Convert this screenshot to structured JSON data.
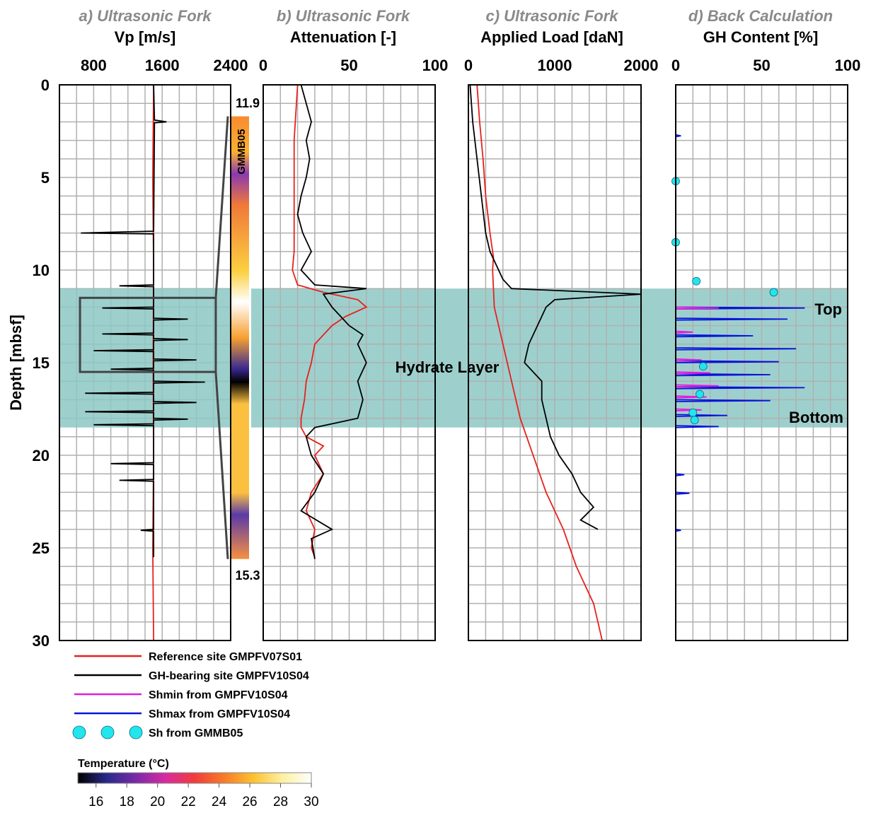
{
  "depth_axis": {
    "label": "Depth [mbsf]",
    "ylim": [
      0,
      30
    ],
    "yticks": [
      0,
      5,
      10,
      15,
      20,
      25,
      30
    ],
    "ygrid": [
      0,
      1,
      2,
      3,
      4,
      5,
      6,
      7,
      8,
      9,
      10,
      11,
      12,
      13,
      14,
      15,
      16,
      17,
      18,
      19,
      20,
      21,
      22,
      23,
      24,
      25,
      26,
      27,
      28,
      29,
      30
    ]
  },
  "charts": [
    {
      "type": "line",
      "title": "a) Ultrasonic Fork",
      "xlabel": "Vp [m/s]",
      "xlim": [
        400,
        2400
      ],
      "xticks": [
        800,
        1600,
        2400
      ],
      "xgrid": [
        400,
        600,
        800,
        1000,
        1200,
        1400,
        1600,
        1800,
        2000,
        2200,
        2400
      ],
      "series": [
        {
          "color": "#e8201c",
          "depth": [
            0,
            5,
            10,
            15,
            20,
            25,
            30
          ],
          "values": [
            1500,
            1490,
            1500,
            1495,
            1500,
            1490,
            1500
          ]
        },
        {
          "color": "#000000",
          "depth": [
            0,
            1.9,
            2.0,
            2.05,
            7.9,
            8.0,
            8.05,
            10.8,
            10.85,
            10.9,
            12.0,
            12.05,
            12.1,
            12.6,
            12.65,
            12.7,
            13.4,
            13.45,
            13.5,
            13.7,
            13.75,
            13.8,
            14.3,
            14.35,
            14.4,
            14.8,
            14.85,
            14.9,
            15.3,
            15.35,
            15.4,
            16.0,
            16.05,
            16.1,
            16.6,
            16.65,
            16.7,
            17.1,
            17.15,
            17.2,
            17.6,
            17.65,
            17.7,
            18.0,
            18.05,
            18.1,
            18.3,
            18.35,
            18.4,
            20.4,
            20.45,
            20.5,
            21.3,
            21.35,
            21.4,
            24.0,
            24.05,
            24.1,
            25.5
          ],
          "values": [
            1500,
            1510,
            1650,
            1510,
            1500,
            650,
            1500,
            1500,
            1100,
            1500,
            1500,
            900,
            1500,
            1500,
            1900,
            1500,
            1500,
            900,
            1500,
            1500,
            1900,
            1500,
            1500,
            800,
            1500,
            1500,
            2000,
            1500,
            1500,
            1000,
            1500,
            1500,
            2100,
            1500,
            1500,
            700,
            1500,
            1500,
            2000,
            1500,
            1500,
            700,
            1500,
            1500,
            1900,
            1500,
            1500,
            800,
            1500,
            1500,
            1000,
            1500,
            1500,
            1100,
            1500,
            1500,
            1350,
            1500,
            1500
          ]
        }
      ]
    },
    {
      "type": "line",
      "title": "b) Ultrasonic Fork",
      "xlabel": "Attenuation [-]",
      "xlim": [
        0,
        100
      ],
      "xticks": [
        0,
        50,
        100
      ],
      "xgrid": [
        0,
        10,
        20,
        30,
        40,
        50,
        60,
        70,
        80,
        90,
        100
      ],
      "series": [
        {
          "color": "#e8201c",
          "depth": [
            0,
            3,
            6,
            9,
            10,
            10.8,
            11.2,
            11.6,
            12,
            12.5,
            13,
            14,
            15,
            16,
            17,
            18,
            18.5,
            19,
            19.5,
            20,
            21,
            22,
            23,
            24,
            25,
            25.5
          ],
          "values": [
            20,
            18,
            18,
            18,
            17,
            20,
            35,
            55,
            60,
            48,
            40,
            30,
            28,
            25,
            24,
            22,
            22,
            25,
            35,
            30,
            35,
            28,
            25,
            30,
            28,
            30
          ]
        },
        {
          "color": "#000000",
          "depth": [
            0,
            1,
            2,
            3,
            4,
            5,
            6,
            7,
            8,
            9,
            10,
            10.8,
            11,
            11.3,
            12,
            13,
            13.5,
            14,
            15,
            16,
            17,
            18,
            18.5,
            19,
            20,
            21,
            22,
            23,
            24,
            24.5,
            25.6
          ],
          "values": [
            22,
            25,
            28,
            25,
            27,
            25,
            22,
            20,
            23,
            28,
            22,
            30,
            60,
            35,
            40,
            50,
            58,
            55,
            60,
            55,
            58,
            55,
            30,
            25,
            28,
            35,
            30,
            22,
            40,
            28,
            30
          ]
        }
      ]
    },
    {
      "type": "line",
      "title": "c) Ultrasonic Fork",
      "xlabel": "Applied Load [daN]",
      "xlim": [
        0,
        2000
      ],
      "xticks": [
        0,
        1000,
        2000
      ],
      "xgrid": [
        0,
        200,
        400,
        600,
        800,
        1000,
        1200,
        1400,
        1600,
        1800,
        2000
      ],
      "series": [
        {
          "color": "#e8201c",
          "depth": [
            0,
            2,
            4,
            6,
            8,
            9.3,
            10,
            12,
            14,
            16,
            18,
            20,
            22,
            24,
            26,
            28,
            30
          ],
          "values": [
            100,
            130,
            170,
            200,
            250,
            290,
            280,
            300,
            400,
            500,
            600,
            750,
            900,
            1100,
            1250,
            1450,
            1550
          ]
        },
        {
          "color": "#000000",
          "depth": [
            0,
            2,
            4,
            6,
            8,
            9,
            10.5,
            11,
            11.3,
            11.6,
            12,
            13,
            14,
            15,
            16,
            17,
            18,
            19,
            20,
            21,
            22,
            22.8,
            23.5,
            24
          ],
          "values": [
            20,
            50,
            100,
            150,
            200,
            250,
            400,
            500,
            2000,
            1000,
            900,
            800,
            700,
            650,
            850,
            850,
            900,
            950,
            1050,
            1200,
            1300,
            1450,
            1300,
            1500
          ]
        }
      ]
    },
    {
      "type": "line",
      "title": "d) Back Calculation",
      "xlabel": "GH Content [%]",
      "xlim": [
        0,
        100
      ],
      "xticks": [
        0,
        50,
        100
      ],
      "xgrid": [
        0,
        10,
        20,
        30,
        40,
        50,
        60,
        70,
        80,
        90,
        100
      ],
      "series": [
        {
          "color": "#0a14d8",
          "depth": [
            0,
            2.7,
            2.75,
            2.8,
            12,
            12.05,
            12.1,
            12.6,
            12.65,
            12.7,
            13.5,
            13.55,
            13.6,
            14.2,
            14.25,
            14.3,
            14.9,
            14.95,
            15.0,
            15.6,
            15.65,
            15.7,
            16.3,
            16.35,
            16.4,
            17.0,
            17.05,
            17.1,
            17.8,
            17.85,
            17.9,
            18.4,
            18.45,
            18.5,
            21,
            21.05,
            21.1,
            22,
            22.05,
            22.1,
            24,
            24.05,
            24.1,
            25
          ],
          "values": [
            0,
            0,
            3,
            0,
            0,
            75,
            0,
            0,
            65,
            0,
            0,
            45,
            0,
            0,
            70,
            0,
            0,
            60,
            0,
            0,
            55,
            0,
            0,
            75,
            0,
            0,
            55,
            0,
            0,
            30,
            0,
            0,
            25,
            0,
            0,
            5,
            0,
            0,
            8,
            0,
            0,
            3,
            0,
            0
          ]
        },
        {
          "color": "#e21ce0",
          "depth": [
            0,
            12,
            12.05,
            12.1,
            13.3,
            13.35,
            13.4,
            14.8,
            14.85,
            14.9,
            15.5,
            15.55,
            15.6,
            16.2,
            16.25,
            16.3,
            16.8,
            16.85,
            16.9,
            17.5,
            17.55,
            17.6,
            25
          ],
          "values": [
            0,
            0,
            25,
            0,
            0,
            10,
            0,
            0,
            15,
            0,
            0,
            20,
            0,
            0,
            25,
            0,
            0,
            18,
            0,
            0,
            15,
            0,
            0
          ]
        },
        {
          "color": "#22e5ee",
          "marker": "circle",
          "depth": [
            5.2,
            8.5,
            10.6,
            11.2,
            15.2,
            16.7,
            17.7,
            18.1
          ],
          "values": [
            0,
            0,
            12,
            57,
            16,
            14,
            10,
            11
          ]
        }
      ]
    }
  ],
  "legend": [
    {
      "name": "Reference site GMPFV07S01",
      "color": "#e8201c"
    },
    {
      "name": "GH-bearing site GMPFV10S04",
      "color": "#000000"
    },
    {
      "name": "Shmin from GMPFV10S04",
      "color": "#e21ce0"
    },
    {
      "name": "Shmax from GMPFV10S04",
      "color": "#0a14d8"
    },
    {
      "name": "Sh from GMMB05",
      "color": "#22e5ee",
      "marker": "circle"
    }
  ],
  "hydrate_layer": {
    "label": "Hydrate Layer",
    "top": 11,
    "bottom": 18.5,
    "top_label": "Top",
    "bottom_label": "Bottom",
    "color": "#8cc8c4"
  },
  "zoom_box": {
    "depth": [
      11.5,
      15.5
    ],
    "values": [
      640,
      2226
    ]
  },
  "core": {
    "label": "GMMB05",
    "depth": [
      1.7,
      25.6
    ],
    "top_label": "11.9",
    "bottom_label": "15.3"
  },
  "colorbar": {
    "title": "Temperature (°C)",
    "lim": [
      15,
      30
    ],
    "ticks": [
      16,
      18,
      20,
      22,
      24,
      26,
      28,
      30
    ],
    "colors": [
      "#000000",
      "#2a2a8c",
      "#7a2aa8",
      "#d82aa0",
      "#f03c3c",
      "#f87a28",
      "#fcc030",
      "#fcf0a0",
      "#ffffff"
    ]
  }
}
